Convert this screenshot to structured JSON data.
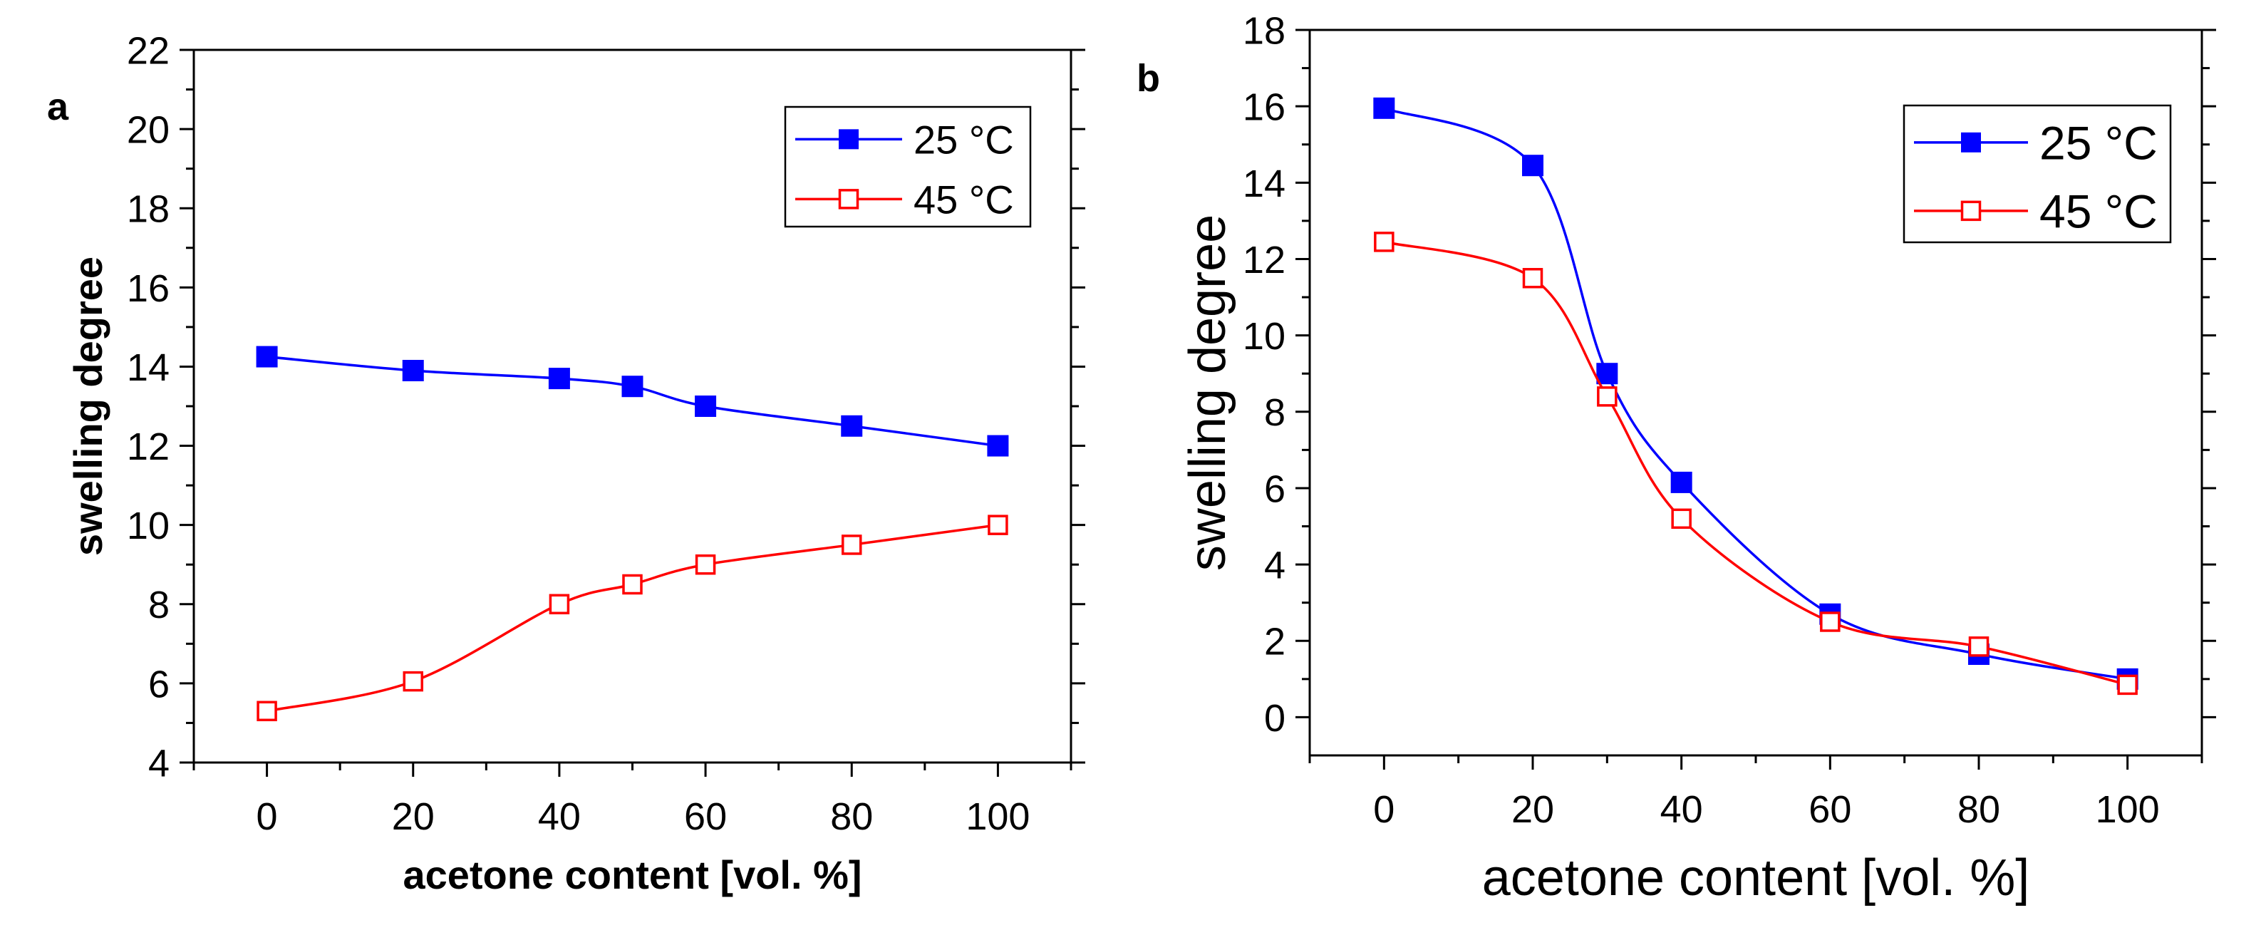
{
  "chart_data": [
    {
      "type": "line",
      "panel_label": "a",
      "title": "",
      "xlabel": "acetone content [vol. %]",
      "ylabel": "swelling degree",
      "xlim": [
        -10,
        110
      ],
      "ylim": [
        4,
        22
      ],
      "x_ticks": [
        0,
        20,
        40,
        60,
        80,
        100
      ],
      "y_ticks": [
        4,
        6,
        8,
        10,
        12,
        14,
        16,
        18,
        20,
        22
      ],
      "legend_position": "top-right",
      "series": [
        {
          "name": "25 °C",
          "color": "#0000ff",
          "marker": "filled-square",
          "x": [
            0,
            20,
            40,
            50,
            60,
            80,
            100
          ],
          "y": [
            14.25,
            13.9,
            13.7,
            13.5,
            13.0,
            12.5,
            12.0
          ]
        },
        {
          "name": "45 °C",
          "color": "#ff0000",
          "marker": "open-square",
          "x": [
            0,
            20,
            40,
            50,
            60,
            80,
            100
          ],
          "y": [
            5.3,
            6.05,
            8.0,
            8.5,
            9.0,
            9.5,
            10.0
          ]
        }
      ]
    },
    {
      "type": "line",
      "panel_label": "b",
      "title": "",
      "xlabel": "acetone content [vol. %]",
      "ylabel": "swelling degree",
      "xlim": [
        -10,
        110
      ],
      "ylim": [
        -1,
        18
      ],
      "x_ticks": [
        0,
        20,
        40,
        60,
        80,
        100
      ],
      "y_ticks": [
        0,
        2,
        4,
        6,
        8,
        10,
        12,
        14,
        16,
        18
      ],
      "legend_position": "top-right",
      "series": [
        {
          "name": "25 °C",
          "color": "#0000ff",
          "marker": "filled-square",
          "x": [
            0,
            20,
            30,
            40,
            60,
            80,
            100
          ],
          "y": [
            15.95,
            14.45,
            9.0,
            6.15,
            2.7,
            1.65,
            1.0
          ]
        },
        {
          "name": "45 °C",
          "color": "#ff0000",
          "marker": "open-square",
          "x": [
            0,
            20,
            30,
            40,
            60,
            80,
            100
          ],
          "y": [
            12.45,
            11.5,
            8.4,
            5.2,
            2.5,
            1.85,
            0.85
          ]
        }
      ]
    }
  ]
}
